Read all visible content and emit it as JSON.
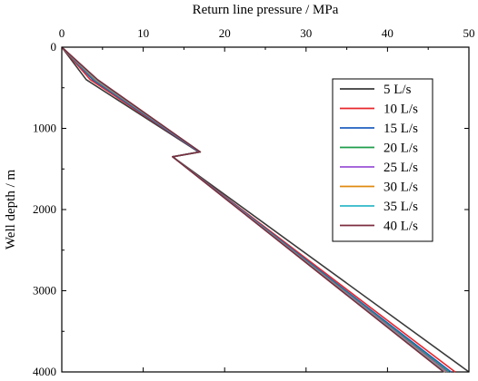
{
  "chart_data": {
    "type": "line",
    "xlabel": "Return line pressure / MPa",
    "ylabel": "Well depth / m",
    "xlim": [
      0,
      50
    ],
    "ylim": [
      4000,
      0
    ],
    "x_axis_position": "top",
    "y_axis_inverted": true,
    "x_ticks": [
      0,
      10,
      20,
      30,
      40,
      50
    ],
    "y_ticks": [
      0,
      1000,
      2000,
      3000,
      4000
    ],
    "grid": false,
    "legend_position": "top-right",
    "series": [
      {
        "name": "5 L/s",
        "color": "#3a3a3a",
        "points": [
          [
            0,
            0
          ],
          [
            3.0,
            400
          ],
          [
            16.8,
            1290
          ],
          [
            13.6,
            1350
          ],
          [
            50.0,
            4000
          ]
        ]
      },
      {
        "name": "10 L/s",
        "color": "#e8262b",
        "points": [
          [
            0,
            0
          ],
          [
            3.5,
            400
          ],
          [
            16.9,
            1290
          ],
          [
            13.6,
            1350
          ],
          [
            48.3,
            4000
          ]
        ]
      },
      {
        "name": "15 L/s",
        "color": "#1f5fbf",
        "points": [
          [
            0,
            0
          ],
          [
            3.8,
            400
          ],
          [
            16.9,
            1290
          ],
          [
            13.6,
            1350
          ],
          [
            47.8,
            4000
          ]
        ]
      },
      {
        "name": "20 L/s",
        "color": "#1e9e4a",
        "points": [
          [
            0,
            0
          ],
          [
            4.0,
            400
          ],
          [
            17.0,
            1290
          ],
          [
            13.6,
            1350
          ],
          [
            47.5,
            4000
          ]
        ]
      },
      {
        "name": "25 L/s",
        "color": "#9a52d6",
        "points": [
          [
            0,
            0
          ],
          [
            4.1,
            400
          ],
          [
            17.0,
            1290
          ],
          [
            13.6,
            1350
          ],
          [
            47.3,
            4000
          ]
        ]
      },
      {
        "name": "30 L/s",
        "color": "#e08a10",
        "points": [
          [
            0,
            0
          ],
          [
            4.2,
            400
          ],
          [
            17.0,
            1290
          ],
          [
            13.6,
            1350
          ],
          [
            47.1,
            4000
          ]
        ]
      },
      {
        "name": "35 L/s",
        "color": "#2fb7c7",
        "points": [
          [
            0,
            0
          ],
          [
            4.3,
            400
          ],
          [
            17.0,
            1290
          ],
          [
            13.6,
            1350
          ],
          [
            47.0,
            4000
          ]
        ]
      },
      {
        "name": "40 L/s",
        "color": "#7b2d3e",
        "points": [
          [
            0,
            0
          ],
          [
            4.4,
            400
          ],
          [
            17.0,
            1290
          ],
          [
            13.6,
            1350
          ],
          [
            46.9,
            4000
          ]
        ]
      }
    ]
  }
}
